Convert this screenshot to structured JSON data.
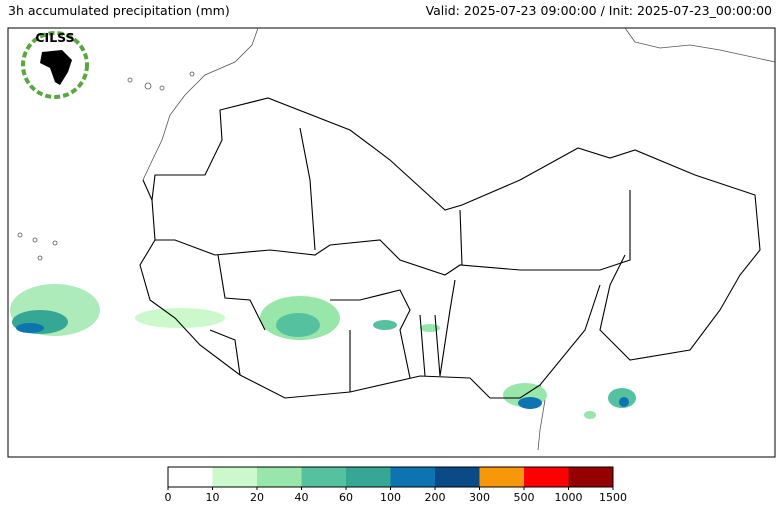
{
  "header": {
    "title": "3h accumulated precipitation (mm)",
    "valid": "Valid: 2025-07-23 09:00:00 / Init: 2025-07-23_00:00:00"
  },
  "logo": {
    "text": "CILSS"
  },
  "colorbar": {
    "ticks": [
      0,
      10,
      20,
      40,
      60,
      100,
      200,
      300,
      500,
      1000,
      1500
    ],
    "colors": [
      "#ffffff",
      "#ccf9cc",
      "#98e6aa",
      "#56c19e",
      "#37a795",
      "#0b74b1",
      "#0a4a87",
      "#f6980a",
      "#fe0000",
      "#950000"
    ]
  }
}
